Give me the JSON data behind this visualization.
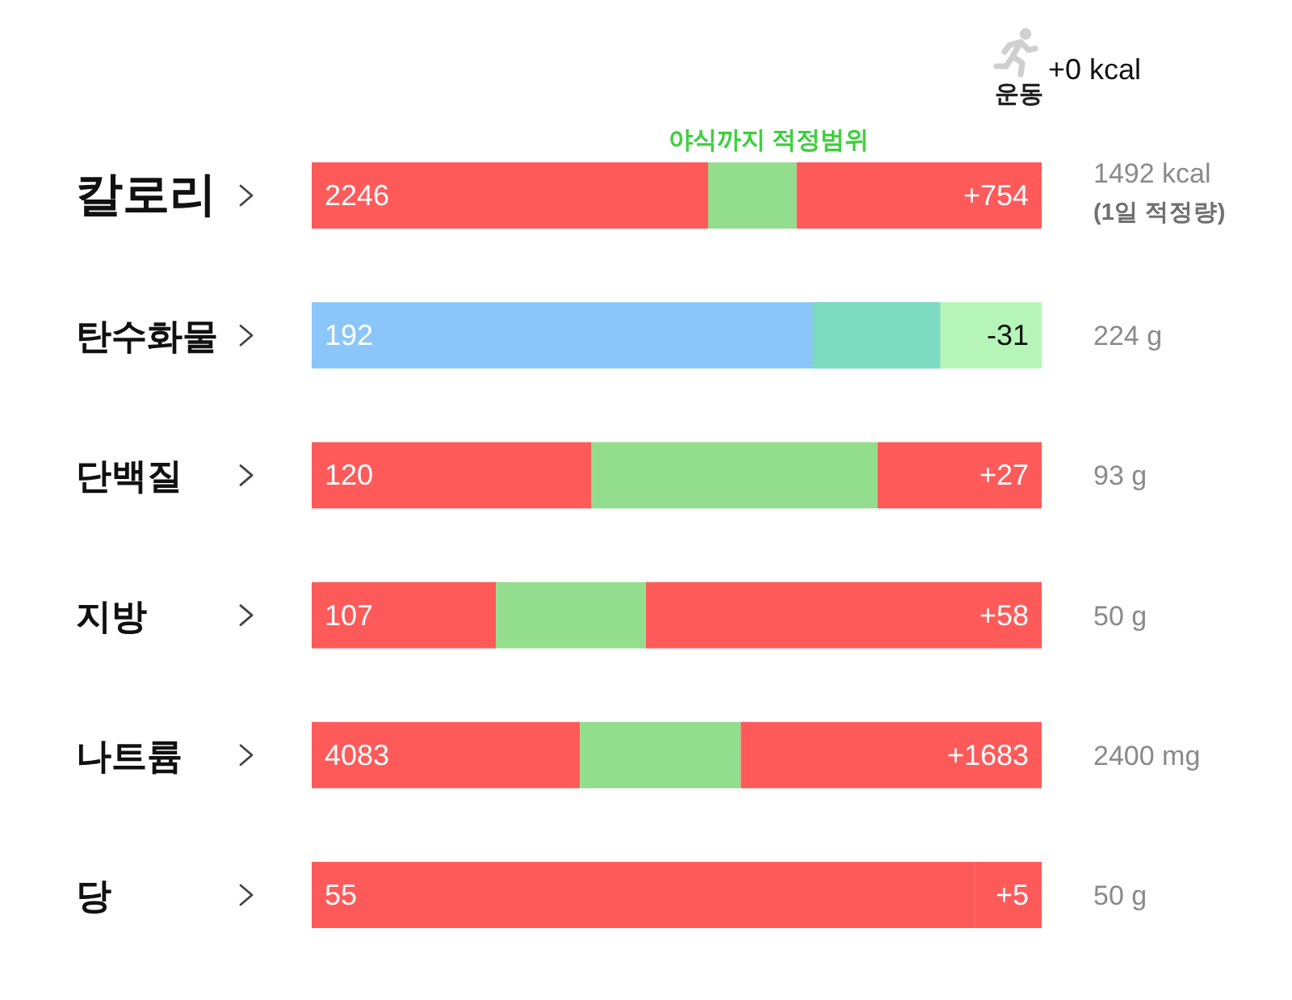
{
  "chart_data": [
    {
      "type": "bar",
      "orientation": "horizontal",
      "stacked": true,
      "tick_labels": "y",
      "xlim": [
        0,
        2246
      ],
      "categories": [
        "칼로리"
      ],
      "y2_categories": [
        "1492 kcal"
      ],
      "series": [
        {
          "color": "#fe5a5a",
          "values": [
            1220
          ]
        },
        {
          "name": "야식까지 적정범위",
          "color": "#93dd8f",
          "values": [
            272
          ]
        },
        {
          "color": "#fe5a5a",
          "values": [
            754
          ],
          "value_labels": [
            "+754"
          ]
        }
      ],
      "totals": [
        "2246"
      ],
      "annotations": [
        "(1일 적정량)",
        "운동",
        "+0 kcal"
      ]
    },
    {
      "type": "bar",
      "orientation": "horizontal",
      "stacked": true,
      "tick_labels": "y",
      "xlim": [
        0,
        223
      ],
      "categories": [
        "탄수화물"
      ],
      "y2_categories": [
        "224 g"
      ],
      "series": [
        {
          "color": "#8bc6fa",
          "values": [
            192
          ],
          "value_labels": [
            "192"
          ]
        },
        {
          "color": "#b6f5b8",
          "values": [
            31
          ]
        }
      ],
      "bands": [
        {
          "axis": "x",
          "from": 153,
          "to": 192,
          "color": "#7ddbbf"
        }
      ],
      "annotations": [
        {
          "text": "-31",
          "x": 223,
          "y": "탄수화물"
        }
      ]
    },
    {
      "type": "bar",
      "orientation": "horizontal",
      "stacked": true,
      "tick_labels": "y",
      "xlim": [
        0,
        120
      ],
      "categories": [
        "단백질"
      ],
      "y2_categories": [
        "93 g"
      ],
      "series": [
        {
          "color": "#fe5a5a",
          "values": [
            46
          ]
        },
        {
          "color": "#93dd8f",
          "values": [
            47
          ]
        },
        {
          "color": "#fe5a5a",
          "values": [
            27
          ],
          "value_labels": [
            "+27"
          ]
        }
      ],
      "totals": [
        "120"
      ]
    },
    {
      "type": "bar",
      "orientation": "horizontal",
      "stacked": true,
      "tick_labels": "y",
      "xlim": [
        0,
        107
      ],
      "categories": [
        "지방"
      ],
      "y2_categories": [
        "50 g"
      ],
      "series": [
        {
          "color": "#fe5a5a",
          "values": [
            27
          ]
        },
        {
          "color": "#93dd8f",
          "values": [
            22
          ]
        },
        {
          "color": "#fe5a5a",
          "values": [
            58
          ],
          "value_labels": [
            "+58"
          ]
        }
      ],
      "totals": [
        "107"
      ]
    },
    {
      "type": "bar",
      "orientation": "horizontal",
      "stacked": true,
      "tick_labels": "y",
      "xlim": [
        0,
        4083
      ],
      "categories": [
        "나트륨"
      ],
      "y2_categories": [
        "2400 mg"
      ],
      "series": [
        {
          "color": "#fe5a5a",
          "values": [
            1500
          ]
        },
        {
          "color": "#93dd8f",
          "values": [
            900
          ]
        },
        {
          "color": "#fe5a5a",
          "values": [
            1683
          ],
          "value_labels": [
            "+1683"
          ]
        }
      ],
      "totals": [
        "4083"
      ]
    },
    {
      "type": "bar",
      "orientation": "horizontal",
      "stacked": true,
      "tick_labels": "y",
      "xlim": [
        0,
        55
      ],
      "categories": [
        "당"
      ],
      "y2_categories": [
        "50 g"
      ],
      "series": [
        {
          "color": "#fe5a5a",
          "values": [
            50
          ]
        },
        {
          "color": "#fe5a5a",
          "values": [
            5
          ],
          "value_labels": [
            "+5"
          ]
        }
      ],
      "totals": [
        "55"
      ]
    }
  ]
}
